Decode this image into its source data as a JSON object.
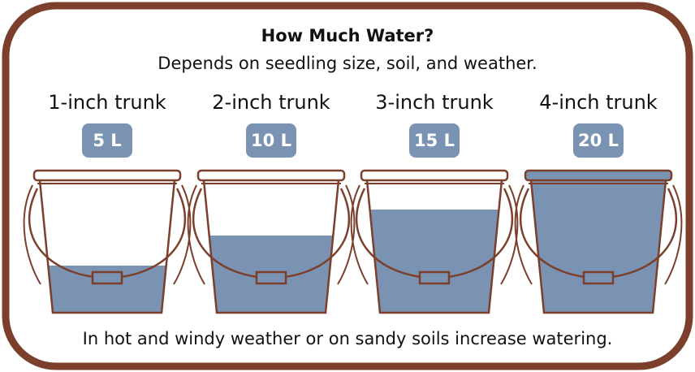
{
  "header": {
    "title": "How Much Water?",
    "subtitle": "Depends on seedling size, soil, and weather."
  },
  "items": [
    {
      "label": "1-inch trunk",
      "amount": "5 L"
    },
    {
      "label": "2-inch trunk",
      "amount": "10 L"
    },
    {
      "label": "3-inch trunk",
      "amount": "15 L"
    },
    {
      "label": "4-inch trunk",
      "amount": "20 L"
    }
  ],
  "footer": "In hot and windy weather or on sandy soils increase watering."
}
